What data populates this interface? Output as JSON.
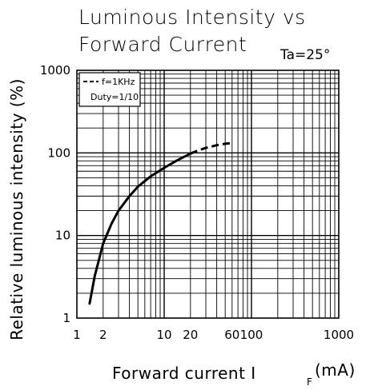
{
  "chart_data": {
    "type": "line",
    "title_line1": "Luminous Intensity vs",
    "title_line2": "Forward Current",
    "condition": "Ta=25°",
    "xlabel": "Forward current I",
    "xlabel_sub": "F",
    "xlabel_unit": "(mA)",
    "ylabel": "Relative luminous intensity (%)",
    "x_scale": "log",
    "y_scale": "log",
    "xlim": [
      1,
      1000
    ],
    "ylim": [
      1,
      1000
    ],
    "grid": true,
    "x_ticks": [
      {
        "value": 1,
        "label": "1"
      },
      {
        "value": 2,
        "label": "2"
      },
      {
        "value": 10,
        "label": "10"
      },
      {
        "value": 20,
        "label": "20"
      },
      {
        "value": 60,
        "label": "60"
      },
      {
        "value": 100,
        "label": "100"
      },
      {
        "value": 1000,
        "label": "1000"
      }
    ],
    "y_ticks": [
      {
        "value": 1,
        "label": "1"
      },
      {
        "value": 10,
        "label": "10"
      },
      {
        "value": 100,
        "label": "100"
      },
      {
        "value": 1000,
        "label": "1000"
      }
    ],
    "legend": {
      "placement": "top-left",
      "line1": "f=1KHz",
      "line2": "Duty=1/10"
    },
    "series": [
      {
        "style": "solid",
        "x": [
          1.4,
          1.6,
          2,
          2.5,
          3,
          4,
          5,
          7,
          10,
          14,
          20
        ],
        "y": [
          1.5,
          3.2,
          8,
          14,
          20,
          30,
          39,
          52,
          66,
          81,
          98
        ]
      },
      {
        "style": "dashed",
        "x": [
          20,
          25,
          30,
          40,
          50,
          60
        ],
        "y": [
          98,
          108,
          115,
          124,
          129,
          132
        ]
      }
    ]
  }
}
